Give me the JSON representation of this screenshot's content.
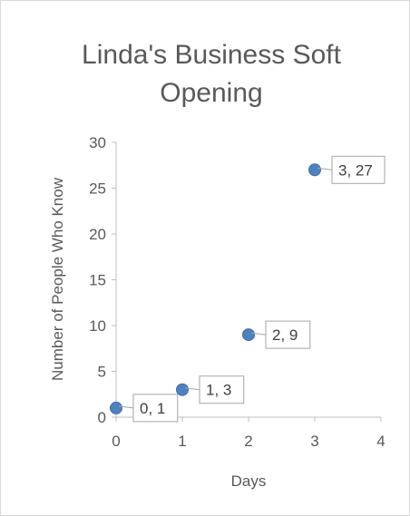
{
  "chart_data": {
    "type": "scatter",
    "title_lines": [
      "Linda's Business Soft",
      "Opening"
    ],
    "xlabel": "Days",
    "ylabel": "Number of People Who Know",
    "xlim": [
      0,
      4
    ],
    "ylim": [
      0,
      30
    ],
    "x_ticks": [
      0,
      1,
      2,
      3,
      4
    ],
    "y_ticks": [
      0,
      5,
      10,
      15,
      20,
      25,
      30
    ],
    "grid": false,
    "legend": "none",
    "marker_color": "#4f81bd",
    "points": [
      {
        "x": 0,
        "y": 1,
        "label": "0, 1"
      },
      {
        "x": 1,
        "y": 3,
        "label": "1, 3"
      },
      {
        "x": 2,
        "y": 9,
        "label": "2, 9"
      },
      {
        "x": 3,
        "y": 27,
        "label": "3, 27"
      }
    ]
  }
}
